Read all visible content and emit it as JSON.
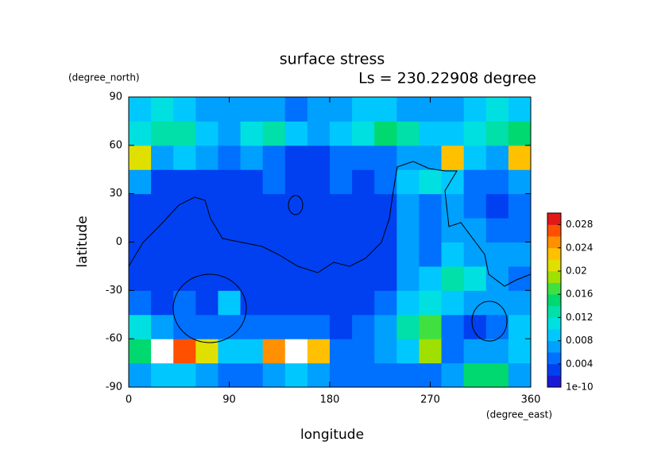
{
  "chart_data": {
    "type": "heatmap",
    "title": "surface stress",
    "subtitle": "Ls = 230.22908 degree",
    "xlabel": "longitude",
    "ylabel": "latitude",
    "x_unit": "(degree_east)",
    "y_unit": "(degree_north)",
    "x": [
      10,
      30,
      50,
      70,
      90,
      110,
      130,
      150,
      170,
      190,
      210,
      230,
      250,
      270,
      290,
      310,
      330,
      350
    ],
    "y": [
      -82.5,
      -67.5,
      -52.5,
      -37.5,
      -22.5,
      -7.5,
      7.5,
      22.5,
      37.5,
      52.5,
      67.5,
      82.5
    ],
    "z": [
      [
        0.006,
        0.008,
        0.008,
        0.006,
        0.004,
        0.004,
        0.006,
        0.008,
        0.006,
        0.004,
        0.004,
        0.004,
        0.004,
        0.004,
        0.006,
        0.014,
        0.014,
        0.006
      ],
      [
        0.014,
        0.03,
        0.026,
        0.02,
        0.008,
        0.008,
        0.024,
        0.03,
        0.022,
        0.004,
        0.004,
        0.006,
        0.008,
        0.018,
        0.004,
        0.006,
        0.006,
        0.008
      ],
      [
        0.01,
        0.006,
        0.004,
        0.004,
        0.004,
        0.004,
        0.004,
        0.004,
        0.004,
        0.002,
        0.004,
        0.006,
        0.012,
        0.016,
        0.004,
        0.002,
        0.004,
        0.008
      ],
      [
        0.004,
        0.003,
        0.004,
        0.003,
        0.008,
        0.002,
        0.002,
        0.002,
        0.002,
        0.002,
        0.002,
        0.004,
        0.008,
        0.01,
        0.008,
        0.006,
        0.006,
        0.006
      ],
      [
        0.002,
        0.003,
        0.002,
        0.002,
        0.003,
        0.002,
        0.002,
        0.002,
        0.002,
        0.002,
        0.002,
        0.002,
        0.006,
        0.008,
        0.012,
        0.01,
        0.006,
        0.004
      ],
      [
        0.002,
        0.002,
        0.002,
        0.002,
        0.002,
        0.002,
        0.002,
        0.002,
        0.002,
        0.002,
        0.002,
        0.002,
        0.006,
        0.004,
        0.008,
        0.006,
        0.006,
        0.006
      ],
      [
        0.002,
        0.002,
        0.002,
        0.002,
        0.002,
        0.002,
        0.002,
        0.002,
        0.002,
        0.002,
        0.002,
        0.003,
        0.006,
        0.004,
        0.006,
        0.006,
        0.004,
        0.004
      ],
      [
        0.002,
        0.002,
        0.002,
        0.003,
        0.002,
        0.002,
        0.002,
        0.002,
        0.002,
        0.002,
        0.002,
        0.003,
        0.006,
        0.004,
        0.006,
        0.004,
        0.003,
        0.004
      ],
      [
        0.006,
        0.003,
        0.002,
        0.003,
        0.002,
        0.002,
        0.004,
        0.002,
        0.003,
        0.004,
        0.002,
        0.004,
        0.008,
        0.01,
        0.008,
        0.004,
        0.004,
        0.006
      ],
      [
        0.02,
        0.006,
        0.008,
        0.006,
        0.004,
        0.006,
        0.004,
        0.003,
        0.003,
        0.004,
        0.004,
        0.004,
        0.006,
        0.006,
        0.022,
        0.008,
        0.006,
        0.022
      ],
      [
        0.01,
        0.012,
        0.012,
        0.008,
        0.006,
        0.01,
        0.012,
        0.008,
        0.006,
        0.008,
        0.01,
        0.014,
        0.012,
        0.008,
        0.008,
        0.01,
        0.012,
        0.014
      ],
      [
        0.008,
        0.01,
        0.008,
        0.006,
        0.006,
        0.006,
        0.006,
        0.005,
        0.006,
        0.006,
        0.008,
        0.008,
        0.006,
        0.006,
        0.006,
        0.008,
        0.01,
        0.008
      ]
    ],
    "xlim": [
      0,
      360
    ],
    "xticks": [
      0,
      90,
      180,
      270,
      360
    ],
    "ylim": [
      -90,
      90
    ],
    "yticks": [
      -90,
      -60,
      -30,
      0,
      30,
      60,
      90
    ],
    "levels": [
      1e-10,
      0.002,
      0.004,
      0.006,
      0.008,
      0.01,
      0.012,
      0.014,
      0.016,
      0.018,
      0.02,
      0.022,
      0.024,
      0.026,
      0.028,
      0.03
    ],
    "colors": [
      "#1a1ad6",
      "#0040f0",
      "#0070ff",
      "#00a0ff",
      "#00c8ff",
      "#00e0e0",
      "#00e0a8",
      "#00d870",
      "#40e040",
      "#a0e000",
      "#e0e000",
      "#ffc000",
      "#ff9000",
      "#ff5000",
      "#e01818"
    ],
    "over_color": "#ffffff",
    "cbar_ticks": [
      {
        "value": 1e-10,
        "label": "1e-10"
      },
      0.004,
      0.008,
      0.012,
      0.016,
      0.02,
      0.024,
      0.028
    ]
  }
}
